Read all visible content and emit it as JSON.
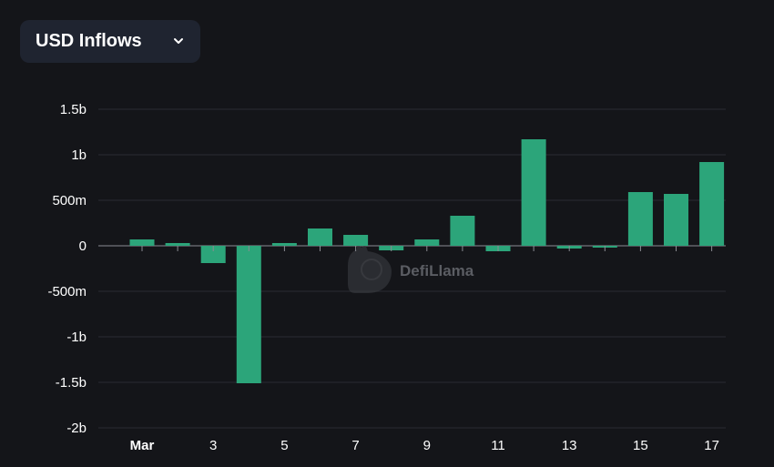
{
  "selector": {
    "label": "USD Inflows"
  },
  "watermark": {
    "text": "DefiLlama"
  },
  "colors": {
    "bar": "#2ca57a",
    "grid": "#2a2c33",
    "axis": "#8a8c92",
    "background": "#141519"
  },
  "chart_data": {
    "type": "bar",
    "title": "",
    "xlabel": "",
    "ylabel": "",
    "categories": [
      "Mar 1",
      "Mar 2",
      "Mar 3",
      "Mar 4",
      "Mar 5",
      "Mar 6",
      "Mar 7",
      "Mar 8",
      "Mar 9",
      "Mar 10",
      "Mar 11",
      "Mar 12",
      "Mar 13",
      "Mar 14",
      "Mar 15",
      "Mar 16",
      "Mar 17"
    ],
    "x_tick_labels": [
      "Mar",
      "3",
      "5",
      "7",
      "9",
      "11",
      "13",
      "15",
      "17"
    ],
    "values": [
      70000000,
      30000000,
      -190000000,
      -1510000000,
      30000000,
      190000000,
      120000000,
      -50000000,
      70000000,
      330000000,
      -60000000,
      1170000000,
      -30000000,
      -20000000,
      590000000,
      570000000,
      920000000
    ],
    "ylim": [
      -2000000000,
      1500000000
    ],
    "y_ticks": [
      1500000000,
      1000000000,
      500000000,
      0,
      -500000000,
      -1000000000,
      -1500000000,
      -2000000000
    ],
    "y_tick_labels": [
      "1.5b",
      "1b",
      "500m",
      "0",
      "-500m",
      "-1b",
      "-1.5b",
      "-2b"
    ],
    "grid": true,
    "legend": "none"
  }
}
